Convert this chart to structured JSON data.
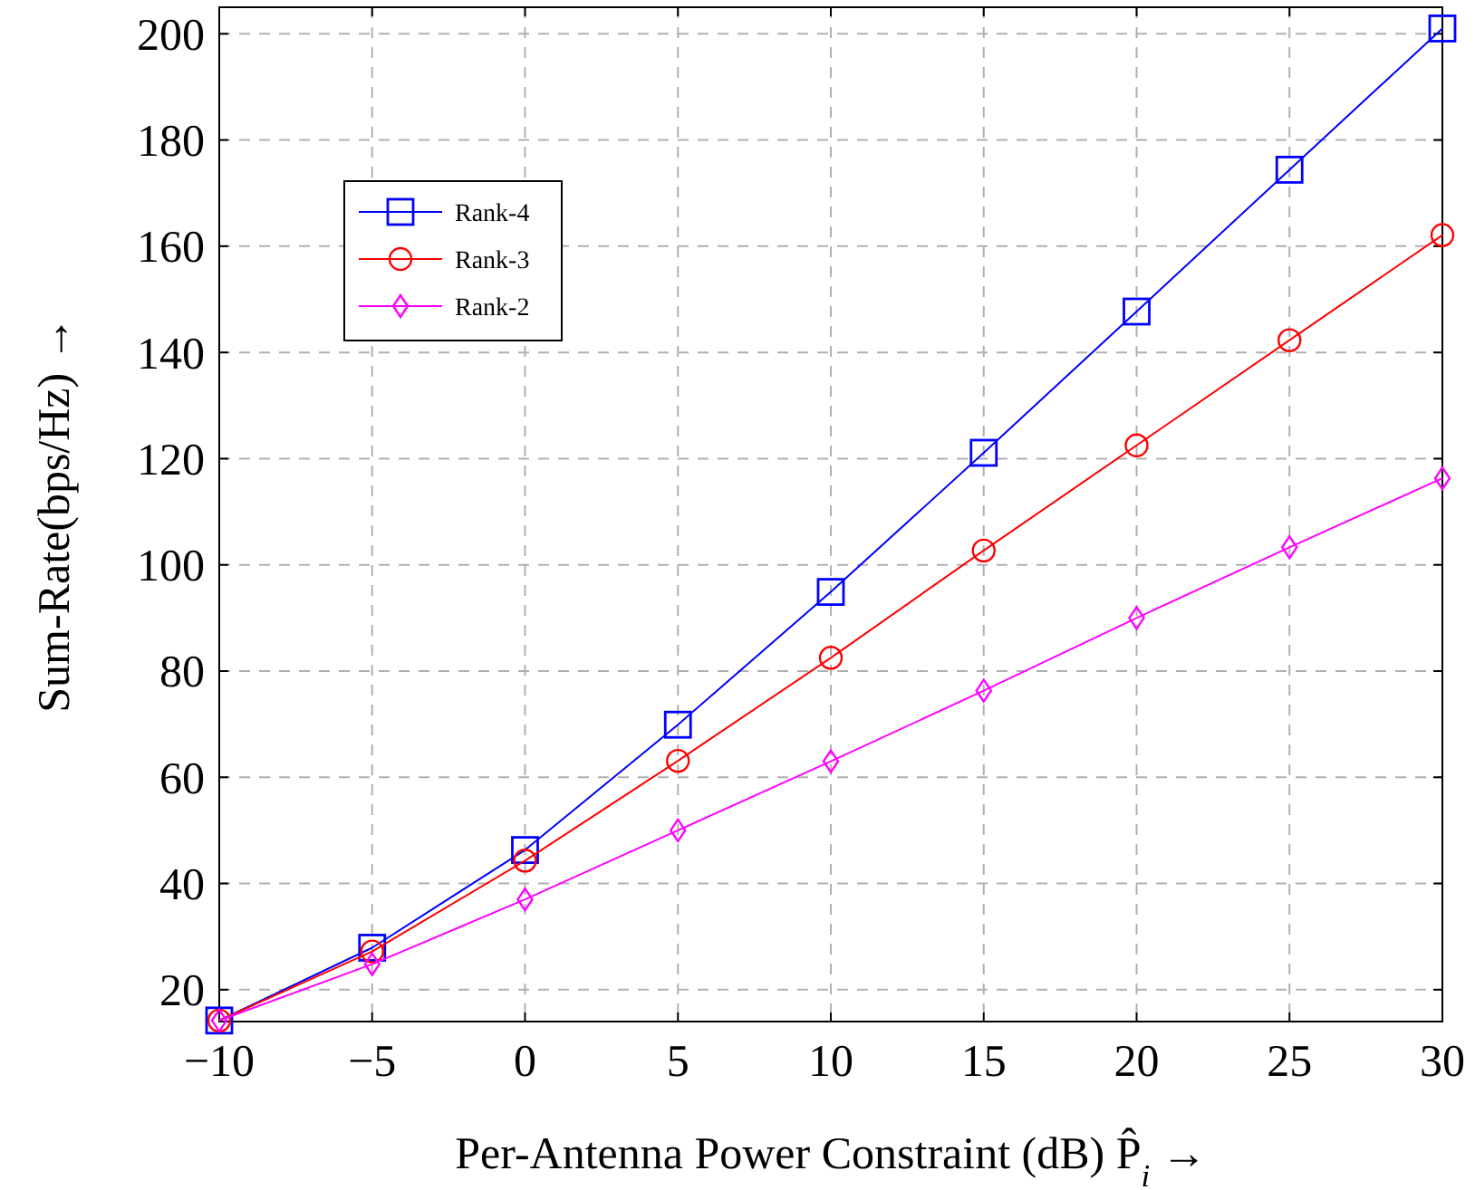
{
  "chart_data": {
    "type": "line",
    "xlabel": "Per-Antenna Power Constraint (dB) P̂$_{i}$ →",
    "ylabel": "Sum-Rate(bps/Hz) →",
    "x": [
      -10,
      -5,
      0,
      5,
      10,
      15,
      20,
      25,
      30
    ],
    "series": [
      {
        "name": "Rank-4",
        "color": "#0000ff",
        "marker": "square",
        "values": [
          14.2,
          27.9,
          46.3,
          69.9,
          94.9,
          121.1,
          147.7,
          174.4,
          201
        ]
      },
      {
        "name": "Rank-3",
        "color": "#ff0000",
        "marker": "circle",
        "values": [
          14.2,
          27.2,
          44.3,
          63.1,
          82.5,
          102.7,
          122.5,
          142.3,
          162.1
        ]
      },
      {
        "name": "Rank-2",
        "color": "#ff00ff",
        "marker": "diamond",
        "values": [
          14.2,
          24.8,
          37.0,
          50.0,
          63.0,
          76.3,
          90.0,
          103.3,
          116.3
        ]
      }
    ],
    "xlim": [
      -10,
      30
    ],
    "xticks": [
      {
        "value": -10,
        "label": "−10"
      },
      {
        "value": -5,
        "label": "−5"
      },
      0,
      5,
      10,
      15,
      20,
      25,
      30
    ],
    "ylim": [
      14,
      205
    ],
    "yticks": [
      20,
      40,
      60,
      80,
      100,
      120,
      140,
      160,
      180,
      200
    ],
    "grid": true,
    "legend": "top left",
    "line_style": "solid"
  }
}
